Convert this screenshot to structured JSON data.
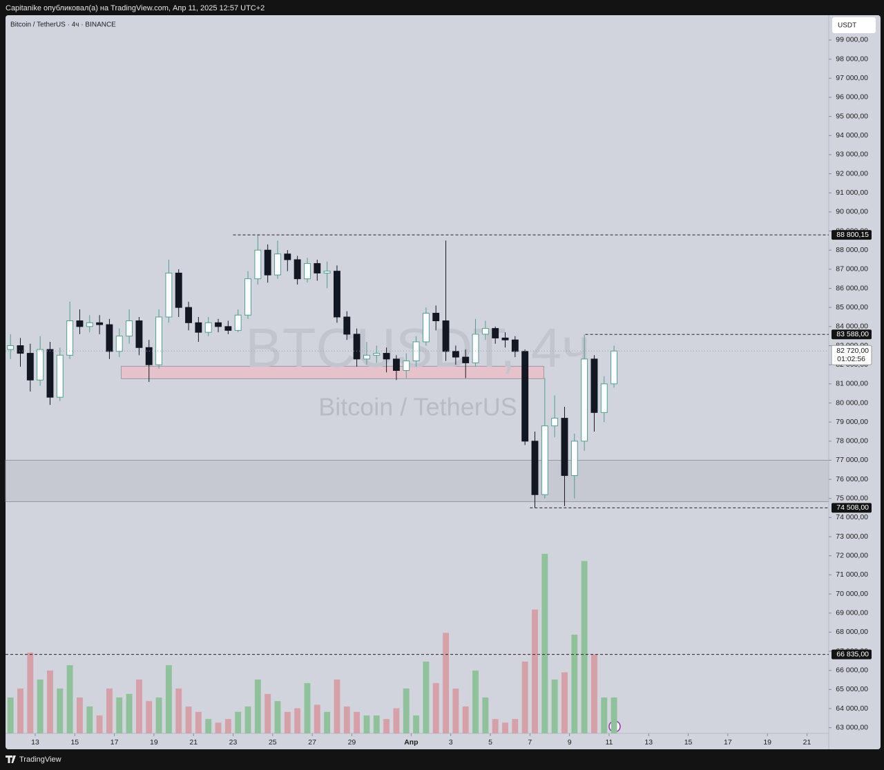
{
  "header": "Capitanike опубликовал(а) на TradingView.com, Апр 11, 2025 12:57 UTC+2",
  "footer": "TradingView",
  "chart_data": {
    "type": "candlestick",
    "title": "Bitcoin / TetherUS · 4ч · BINANCE",
    "currency": "USDT",
    "watermark": [
      "BTCUSDT, 4ч",
      "Bitcoin / TetherUS"
    ],
    "x": [
      11.75,
      12.25,
      12.75,
      13.25,
      13.75,
      14.25,
      14.75,
      15.25,
      15.75,
      16.25,
      16.75,
      17.25,
      17.75,
      18.25,
      18.75,
      19.25,
      19.75,
      20.25,
      20.75,
      21.25,
      21.75,
      22.25,
      22.75,
      23.25,
      23.75,
      24.25,
      24.75,
      25.25,
      25.75,
      26.25,
      26.75,
      27.25,
      27.75,
      28.25,
      28.75,
      29.25,
      29.75,
      30.25,
      30.75,
      31.25,
      31.75,
      32.25,
      32.75,
      33.25,
      33.75,
      34.25,
      34.75,
      35.25,
      35.75,
      36.25,
      36.75,
      37.25,
      37.75,
      38.25,
      38.75,
      39.25,
      39.75,
      40.25,
      40.75,
      41.25,
      41.75,
      42.25
    ],
    "open": [
      82800,
      83000,
      82600,
      81200,
      82800,
      80300,
      82500,
      84300,
      84000,
      84200,
      84100,
      82700,
      83500,
      84300,
      82900,
      82000,
      84500,
      86800,
      85000,
      84200,
      83700,
      84200,
      84000,
      83800,
      84600,
      86500,
      88000,
      86700,
      87800,
      87500,
      86500,
      87300,
      86800,
      86900,
      84500,
      83600,
      82300,
      82500,
      82600,
      82300,
      81700,
      82200,
      83200,
      84700,
      84300,
      82700,
      82400,
      82100,
      83600,
      83900,
      83400,
      83300,
      82700,
      78000,
      75200,
      78800,
      79200,
      76200,
      78000,
      82300,
      79500,
      81000
    ],
    "high": [
      83600,
      83400,
      83100,
      83500,
      83200,
      82900,
      85300,
      84900,
      84600,
      84600,
      84400,
      83900,
      84900,
      84500,
      83300,
      84900,
      87500,
      87000,
      85300,
      84500,
      84500,
      84400,
      84300,
      84900,
      86900,
      88800.15,
      88300,
      88500,
      88000,
      87700,
      87600,
      87500,
      87400,
      87200,
      84800,
      83900,
      83200,
      83000,
      82900,
      82500,
      82600,
      83500,
      85000,
      85100,
      88500,
      83000,
      82800,
      84400,
      84300,
      84000,
      83700,
      83500,
      82800,
      78500,
      81300,
      80400,
      79800,
      78400,
      83588,
      82500,
      81400,
      83000
    ],
    "low": [
      82300,
      81900,
      80600,
      80900,
      79900,
      80100,
      82300,
      83600,
      83700,
      83600,
      82300,
      82400,
      83100,
      82500,
      81100,
      81800,
      84200,
      84500,
      83800,
      83200,
      83500,
      83700,
      83600,
      83700,
      84400,
      86200,
      86300,
      86500,
      86900,
      86200,
      86300,
      86400,
      86000,
      84200,
      83300,
      81900,
      82000,
      82100,
      81600,
      81200,
      81300,
      81900,
      83000,
      83800,
      82200,
      82000,
      81300,
      81900,
      83300,
      83100,
      82900,
      82400,
      77800,
      74508,
      75000,
      78200,
      74600,
      75000,
      77500,
      78500,
      79000,
      80800
    ],
    "close": [
      83000,
      82600,
      81200,
      82800,
      80300,
      82500,
      84300,
      84000,
      84200,
      84100,
      82700,
      83500,
      84300,
      82900,
      82000,
      84500,
      86800,
      85000,
      84200,
      83700,
      84200,
      84000,
      83800,
      84600,
      86500,
      88000,
      86700,
      87800,
      87500,
      86500,
      87300,
      86800,
      86900,
      84500,
      83600,
      82300,
      82500,
      82600,
      82300,
      81700,
      82200,
      83200,
      84700,
      84300,
      82700,
      82400,
      82100,
      83600,
      83900,
      83400,
      83300,
      82700,
      78000,
      75200,
      78800,
      79200,
      76200,
      78000,
      82300,
      79500,
      81000,
      82720
    ],
    "volume": [
      20,
      25,
      45,
      30,
      35,
      25,
      38,
      20,
      15,
      10,
      25,
      20,
      22,
      30,
      18,
      20,
      38,
      25,
      15,
      12,
      8,
      6,
      8,
      12,
      15,
      30,
      22,
      18,
      12,
      14,
      28,
      16,
      12,
      30,
      15,
      12,
      10,
      10,
      8,
      14,
      25,
      10,
      40,
      28,
      56,
      25,
      15,
      35,
      20,
      8,
      6,
      8,
      40,
      69,
      100,
      30,
      34,
      55,
      96,
      44,
      20,
      20
    ],
    "up_color": "#4f9e8f",
    "down_color": "#131722",
    "volume_up_color": "#8fc29a",
    "volume_down_color": "#d6a0a8",
    "xlim": [
      11.5,
      53.1
    ],
    "ylim": [
      62700,
      100300
    ],
    "xticks": [
      13,
      15,
      17,
      19,
      21,
      23,
      25,
      27,
      29,
      {
        "value": 32,
        "label": "Апр"
      },
      {
        "value": 34,
        "label": "3"
      },
      {
        "value": 36,
        "label": "5"
      },
      {
        "value": 38,
        "label": "7"
      },
      {
        "value": 40,
        "label": "9"
      },
      {
        "value": 42,
        "label": "11"
      },
      {
        "value": 44,
        "label": "13"
      },
      {
        "value": 46,
        "label": "15"
      },
      {
        "value": 48,
        "label": "17"
      },
      {
        "value": 50,
        "label": "19"
      },
      {
        "value": 52,
        "label": "21"
      }
    ],
    "yticks": [
      {
        "value": 63000,
        "label": "63 000,00"
      },
      {
        "value": 64000,
        "label": "64 000,00"
      },
      {
        "value": 65000,
        "label": "65 000,00"
      },
      {
        "value": 66000,
        "label": "66 000,00"
      },
      {
        "value": 67000,
        "label": "67 000,00"
      },
      {
        "value": 68000,
        "label": "68 000,00"
      },
      {
        "value": 69000,
        "label": "69 000,00"
      },
      {
        "value": 70000,
        "label": "70 000,00"
      },
      {
        "value": 71000,
        "label": "71 000,00"
      },
      {
        "value": 72000,
        "label": "72 000,00"
      },
      {
        "value": 73000,
        "label": "73 000,00"
      },
      {
        "value": 74000,
        "label": "74 000,00"
      },
      {
        "value": 75000,
        "label": "75 000,00"
      },
      {
        "value": 76000,
        "label": "76 000,00"
      },
      {
        "value": 77000,
        "label": "77 000,00"
      },
      {
        "value": 78000,
        "label": "78 000,00"
      },
      {
        "value": 79000,
        "label": "79 000,00"
      },
      {
        "value": 80000,
        "label": "80 000,00"
      },
      {
        "value": 81000,
        "label": "81 000,00"
      },
      {
        "value": 82000,
        "label": "82 000,00"
      },
      {
        "value": 83000,
        "label": "83 000,00"
      },
      {
        "value": 84000,
        "label": "84 000,00"
      },
      {
        "value": 85000,
        "label": "85 000,00"
      },
      {
        "value": 86000,
        "label": "86 000,00"
      },
      {
        "value": 87000,
        "label": "87 000,00"
      },
      {
        "value": 88000,
        "label": "88 000,00"
      },
      {
        "value": 89000,
        "label": "89 000,00"
      },
      {
        "value": 90000,
        "label": "90 000,00"
      },
      {
        "value": 91000,
        "label": "91 000,00"
      },
      {
        "value": 92000,
        "label": "92 000,00"
      },
      {
        "value": 93000,
        "label": "93 000,00"
      },
      {
        "value": 94000,
        "label": "94 000,00"
      },
      {
        "value": 95000,
        "label": "95 000,00"
      },
      {
        "value": 96000,
        "label": "96 000,00"
      },
      {
        "value": 97000,
        "label": "97 000,00"
      },
      {
        "value": 98000,
        "label": "98 000,00"
      },
      {
        "value": 99000,
        "label": "99 000,00"
      }
    ],
    "zones": [
      {
        "top": 81923,
        "bottom": 81272,
        "x_from": 17.35,
        "x_to": 38.7,
        "color": "#e6c3cb"
      },
      {
        "top": 77003,
        "bottom": 74832,
        "color": "#c7c9d2"
      }
    ],
    "levels": [
      {
        "value": 88800.15,
        "label": "88 800,15",
        "from": 23
      },
      {
        "value": 83588,
        "label": "83 588,00",
        "from": 40.8
      },
      {
        "value": 74508,
        "label": "74 508,00",
        "from": 38
      },
      {
        "value": 66835,
        "label": "66 835,00"
      }
    ],
    "last_price": {
      "value": 82720,
      "label": "82 720,00",
      "countdown": "01:02:56"
    }
  }
}
